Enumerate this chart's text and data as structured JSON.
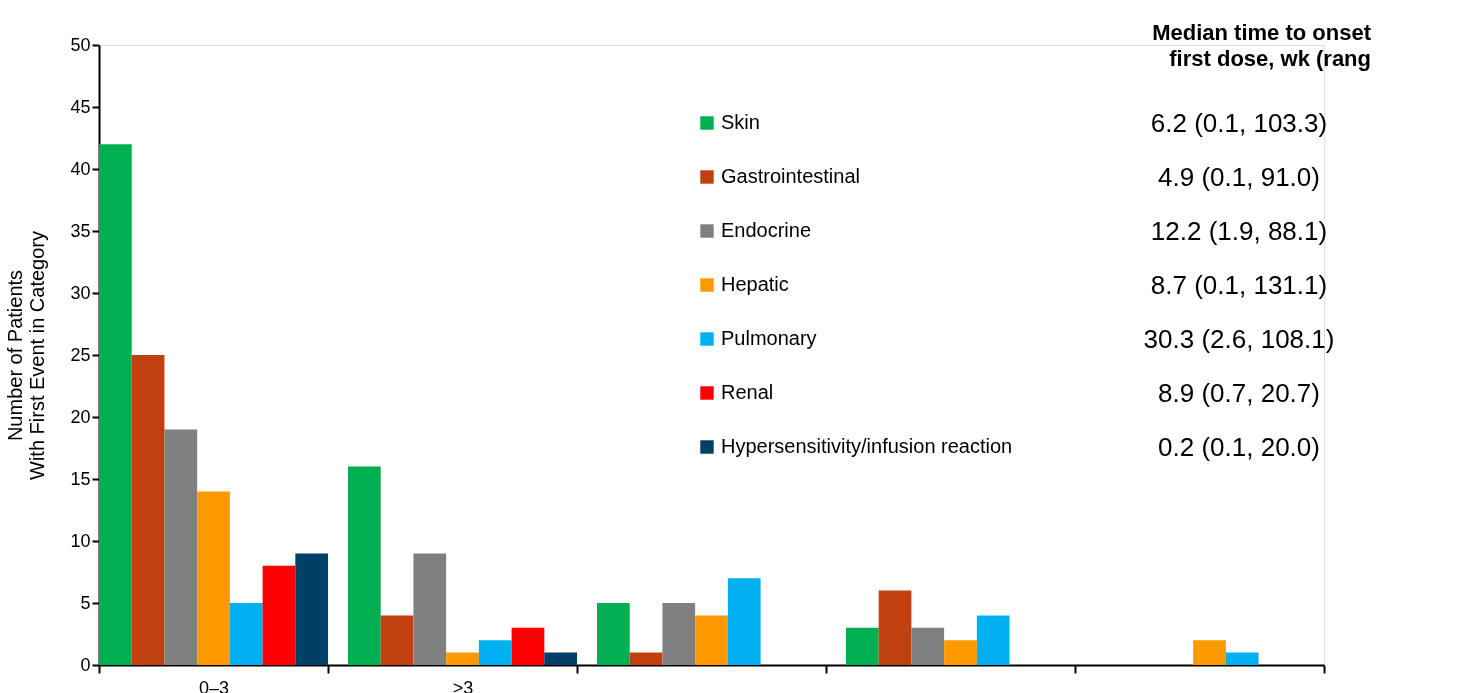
{
  "chart_data": {
    "type": "bar",
    "ylabel": "Number of Patients\nWith First Event in Category",
    "legend_title": "Median time to onset\nfirst dose, wk (rang",
    "categories": [
      "0–3",
      ">3",
      null,
      null,
      null
    ],
    "series": [
      {
        "name": "Skin",
        "color": "#00b050",
        "values": [
          42,
          16,
          5,
          3,
          0
        ]
      },
      {
        "name": "Gastrointestinal",
        "color": "#c0400f",
        "values": [
          25,
          4,
          1,
          6,
          0
        ]
      },
      {
        "name": "Endocrine",
        "color": "#808080",
        "values": [
          19,
          9,
          5,
          3,
          0
        ]
      },
      {
        "name": "Hepatic",
        "color": "#ff9900",
        "values": [
          14,
          1,
          4,
          2,
          2
        ]
      },
      {
        "name": "Pulmonary",
        "color": "#00b0f0",
        "values": [
          5,
          2,
          7,
          4,
          1
        ]
      },
      {
        "name": "Renal",
        "color": "#ff0000",
        "values": [
          8,
          3,
          0,
          0,
          0
        ]
      },
      {
        "name": "Hypersensitivity/infusion reaction",
        "color": "#003f66",
        "values": [
          9,
          1,
          0,
          0,
          0
        ]
      }
    ],
    "annotations": [
      "6.2 (0.1, 103.3)",
      "4.9 (0.1, 91.0)",
      "12.2 (1.9, 88.1)",
      "8.7 (0.1, 131.1)",
      "30.3 (2.6, 108.1)",
      "8.9 (0.7, 20.7)",
      "0.2 (0.1, 20.0)"
    ],
    "ylim": [
      0,
      50
    ],
    "yticks": [
      0,
      5,
      10,
      15,
      20,
      25,
      30,
      35,
      40,
      45,
      50
    ],
    "grid": false,
    "legend": "top right"
  }
}
